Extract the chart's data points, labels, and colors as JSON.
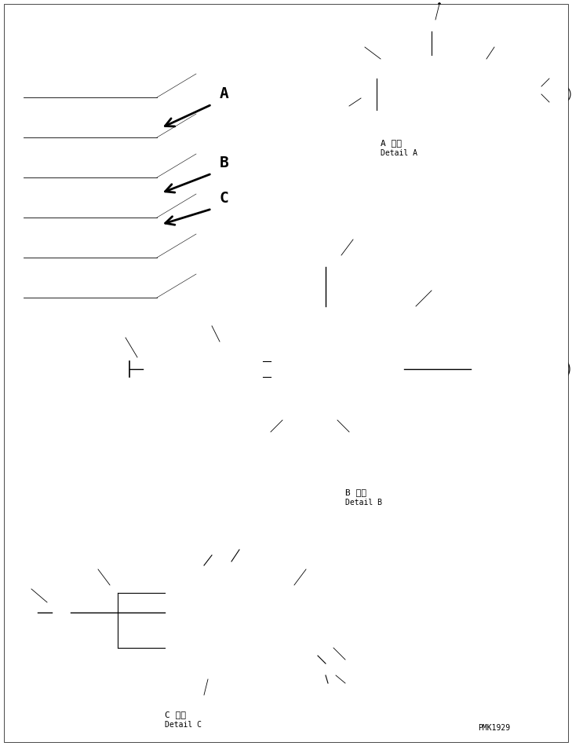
{
  "background_color": "#ffffff",
  "fig_width": 7.29,
  "fig_height": 9.5,
  "dpi": 100,
  "labels": {
    "detail_a_jp": "A 詳細",
    "detail_a_en": "Detail A",
    "detail_b_jp": "B 詳細",
    "detail_b_en": "Detail B",
    "detail_c_jp": "C 詳細",
    "detail_c_en": "Detail C",
    "code": "PMK1929",
    "label_a": "A",
    "label_b": "B",
    "label_c": "C"
  },
  "colors": {
    "line": "#000000",
    "background": "#ffffff",
    "arrow_fill": "#1a1a1a"
  },
  "font_sizes": {
    "label": 9,
    "detail_jp": 8,
    "detail_en": 7,
    "code": 7
  }
}
